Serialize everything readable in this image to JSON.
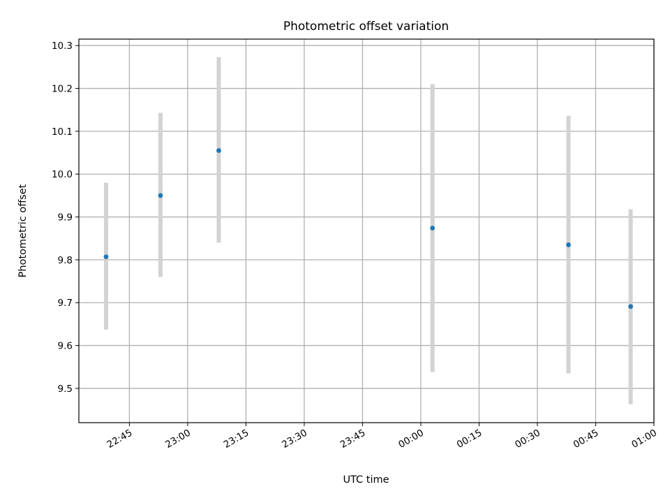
{
  "chart_data": {
    "type": "scatter",
    "title": "Photometric offset variation",
    "xlabel": "UTC time",
    "ylabel": "Photometric offset",
    "x_unit": "UTC time (HH:MM), spanning midnight",
    "xlim": [
      "22:32",
      "01:00"
    ],
    "ylim": [
      9.42,
      10.315
    ],
    "x_ticks": [
      "22:45",
      "23:00",
      "23:15",
      "23:30",
      "23:45",
      "00:00",
      "00:15",
      "00:30",
      "00:45",
      "01:00"
    ],
    "y_ticks": [
      "9.5",
      "9.6",
      "9.7",
      "9.8",
      "9.9",
      "10.0",
      "10.1",
      "10.2",
      "10.3"
    ],
    "grid": true,
    "marker_color": "#1f77b4",
    "errorbar_color": "#d3d3d3",
    "points": [
      {
        "x": "22:39",
        "y": 9.807,
        "ylow": 9.637,
        "yhigh": 9.98
      },
      {
        "x": "22:53",
        "y": 9.95,
        "ylow": 9.76,
        "yhigh": 10.143
      },
      {
        "x": "23:08",
        "y": 10.055,
        "ylow": 9.84,
        "yhigh": 10.273
      },
      {
        "x": "00:03",
        "y": 9.874,
        "ylow": 9.538,
        "yhigh": 10.21
      },
      {
        "x": "00:38",
        "y": 9.835,
        "ylow": 9.535,
        "yhigh": 10.136
      },
      {
        "x": "00:54",
        "y": 9.691,
        "ylow": 9.463,
        "yhigh": 9.918
      }
    ]
  }
}
